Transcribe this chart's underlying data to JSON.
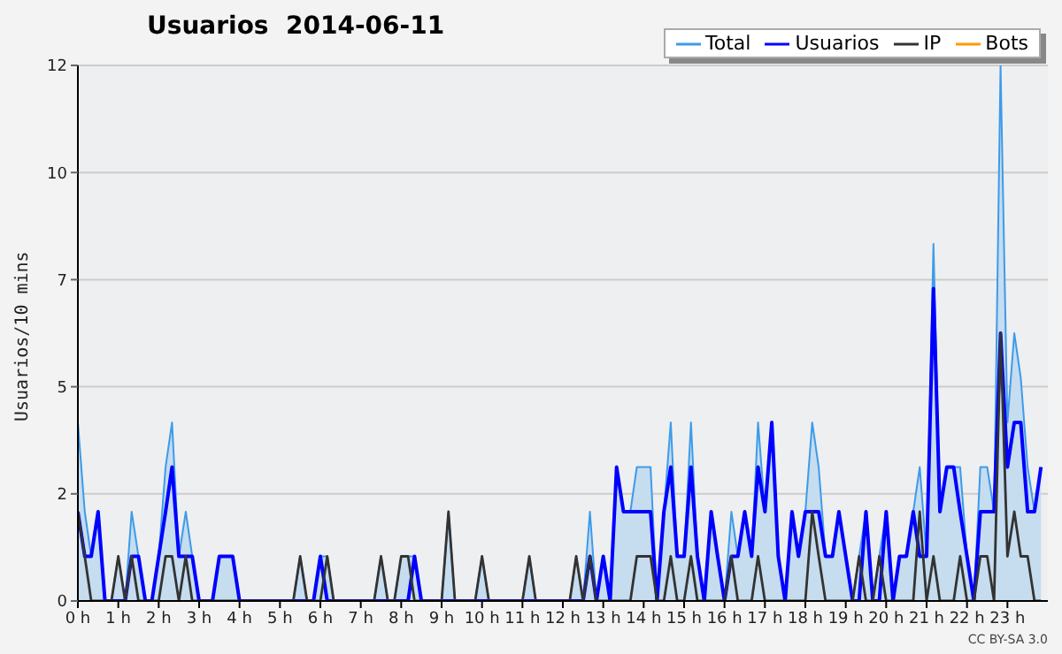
{
  "chart_data": {
    "type": "line",
    "title": "Usuarios  2014-06-11",
    "ylabel": "Usuarios/10 mins",
    "annotations": [
      "CC BY-SA 3.0"
    ],
    "xlim": [
      0,
      24
    ],
    "ylim": [
      0,
      12
    ],
    "xticks": [
      {
        "value": 0,
        "label": "0 h"
      },
      {
        "value": 1,
        "label": "1 h"
      },
      {
        "value": 2,
        "label": "2 h"
      },
      {
        "value": 3,
        "label": "3 h"
      },
      {
        "value": 4,
        "label": "4 h"
      },
      {
        "value": 5,
        "label": "5 h"
      },
      {
        "value": 6,
        "label": "6 h"
      },
      {
        "value": 7,
        "label": "7 h"
      },
      {
        "value": 8,
        "label": "8 h"
      },
      {
        "value": 9,
        "label": "9 h"
      },
      {
        "value": 10,
        "label": "10 h"
      },
      {
        "value": 11,
        "label": "11 h"
      },
      {
        "value": 12,
        "label": "12 h"
      },
      {
        "value": 13,
        "label": "13 h"
      },
      {
        "value": 14,
        "label": "14 h"
      },
      {
        "value": 15,
        "label": "15 h"
      },
      {
        "value": 16,
        "label": "16 h"
      },
      {
        "value": 17,
        "label": "17 h"
      },
      {
        "value": 18,
        "label": "18 h"
      },
      {
        "value": 19,
        "label": "19 h"
      },
      {
        "value": 20,
        "label": "20 h"
      },
      {
        "value": 21,
        "label": "21 h"
      },
      {
        "value": 22,
        "label": "22 h"
      },
      {
        "value": 23,
        "label": "23 h"
      }
    ],
    "yticks": [
      0,
      {
        "value": 2.4,
        "label": "2"
      },
      {
        "value": 4.8,
        "label": "5"
      },
      {
        "value": 7.2,
        "label": "7"
      },
      {
        "value": 9.6,
        "label": "10"
      },
      12
    ],
    "grid": "y",
    "legend": "top right",
    "marker": "none",
    "line_style": "solid",
    "x": [
      0,
      0.17,
      0.33,
      0.5,
      0.67,
      0.83,
      1,
      1.17,
      1.33,
      1.5,
      1.67,
      1.83,
      2,
      2.17,
      2.33,
      2.5,
      2.67,
      2.83,
      3,
      3.17,
      3.33,
      3.5,
      3.67,
      3.83,
      4,
      4.17,
      4.33,
      4.5,
      4.67,
      4.83,
      5,
      5.17,
      5.33,
      5.5,
      5.67,
      5.83,
      6,
      6.17,
      6.33,
      6.5,
      6.67,
      6.83,
      7,
      7.17,
      7.33,
      7.5,
      7.67,
      7.83,
      8,
      8.17,
      8.33,
      8.5,
      8.67,
      8.83,
      9,
      9.17,
      9.33,
      9.5,
      9.67,
      9.83,
      10,
      10.17,
      10.33,
      10.5,
      10.67,
      10.83,
      11,
      11.17,
      11.33,
      11.5,
      11.67,
      11.83,
      12,
      12.17,
      12.33,
      12.5,
      12.67,
      12.83,
      13,
      13.17,
      13.33,
      13.5,
      13.67,
      13.83,
      14,
      14.17,
      14.33,
      14.5,
      14.67,
      14.83,
      15,
      15.17,
      15.33,
      15.5,
      15.67,
      15.83,
      16,
      16.17,
      16.33,
      16.5,
      16.67,
      16.83,
      17,
      17.17,
      17.33,
      17.5,
      17.67,
      17.83,
      18,
      18.17,
      18.33,
      18.5,
      18.67,
      18.83,
      19,
      19.17,
      19.33,
      19.5,
      19.67,
      19.83,
      20,
      20.17,
      20.33,
      20.5,
      20.67,
      20.83,
      21,
      21.17,
      21.33,
      21.5,
      21.67,
      21.83,
      22,
      22.17,
      22.33,
      22.5,
      22.67,
      22.83,
      23,
      23.17,
      23.33,
      23.5,
      23.67,
      23.83
    ],
    "series": [
      {
        "name": "Total",
        "type": "area",
        "color": "#3d9be9",
        "values": [
          4,
          2,
          1,
          2,
          0,
          0,
          1,
          0,
          2,
          1,
          0,
          0,
          1,
          3,
          4,
          1,
          2,
          1,
          0,
          0,
          0,
          1,
          1,
          1,
          0,
          0,
          0,
          0,
          0,
          0,
          0,
          0,
          0,
          1,
          0,
          0,
          1,
          1,
          0,
          0,
          0,
          0,
          0,
          0,
          0,
          1,
          0,
          0,
          1,
          1,
          1,
          0,
          0,
          0,
          0,
          2,
          0,
          0,
          0,
          0,
          1,
          0,
          0,
          0,
          0,
          0,
          0,
          1,
          0,
          0,
          0,
          0,
          0,
          0,
          1,
          0,
          2,
          0,
          1,
          0,
          3,
          2,
          2,
          3,
          3,
          3,
          0,
          2,
          4,
          1,
          1,
          4,
          1,
          0,
          2,
          1,
          0,
          2,
          1,
          2,
          1,
          4,
          2,
          4,
          1,
          0,
          2,
          1,
          2,
          4,
          3,
          1,
          1,
          2,
          1,
          0,
          1,
          2,
          0,
          1,
          2,
          0,
          1,
          1,
          2,
          3,
          1,
          8,
          2,
          3,
          3,
          3,
          1,
          0,
          3,
          3,
          2,
          12,
          4,
          6,
          5,
          3,
          2,
          3
        ]
      },
      {
        "name": "Usuarios",
        "color": "#0000ff",
        "values": [
          2,
          1,
          1,
          2,
          0,
          0,
          0,
          0,
          1,
          1,
          0,
          0,
          1,
          2,
          3,
          1,
          1,
          1,
          0,
          0,
          0,
          1,
          1,
          1,
          0,
          0,
          0,
          0,
          0,
          0,
          0,
          0,
          0,
          0,
          0,
          0,
          1,
          0,
          0,
          0,
          0,
          0,
          0,
          0,
          0,
          0,
          0,
          0,
          0,
          0,
          1,
          0,
          0,
          0,
          0,
          0,
          0,
          0,
          0,
          0,
          0,
          0,
          0,
          0,
          0,
          0,
          0,
          0,
          0,
          0,
          0,
          0,
          0,
          0,
          0,
          0,
          1,
          0,
          1,
          0,
          3,
          2,
          2,
          2,
          2,
          2,
          0,
          2,
          3,
          1,
          1,
          3,
          1,
          0,
          2,
          1,
          0,
          1,
          1,
          2,
          1,
          3,
          2,
          4,
          1,
          0,
          2,
          1,
          2,
          2,
          2,
          1,
          1,
          2,
          1,
          0,
          0,
          2,
          0,
          0,
          2,
          0,
          1,
          1,
          2,
          1,
          1,
          7,
          2,
          3,
          3,
          2,
          1,
          0,
          2,
          2,
          2,
          6,
          3,
          4,
          4,
          2,
          2,
          3
        ]
      },
      {
        "name": "IP",
        "color": "#333333",
        "values": [
          2,
          1,
          0,
          0,
          0,
          0,
          1,
          0,
          1,
          0,
          0,
          0,
          0,
          1,
          1,
          0,
          1,
          0,
          0,
          0,
          0,
          0,
          0,
          0,
          0,
          0,
          0,
          0,
          0,
          0,
          0,
          0,
          0,
          1,
          0,
          0,
          0,
          1,
          0,
          0,
          0,
          0,
          0,
          0,
          0,
          1,
          0,
          0,
          1,
          1,
          0,
          0,
          0,
          0,
          0,
          2,
          0,
          0,
          0,
          0,
          1,
          0,
          0,
          0,
          0,
          0,
          0,
          1,
          0,
          0,
          0,
          0,
          0,
          0,
          1,
          0,
          1,
          0,
          0,
          0,
          0,
          0,
          0,
          1,
          1,
          1,
          0,
          0,
          1,
          0,
          0,
          1,
          0,
          0,
          0,
          0,
          0,
          1,
          0,
          0,
          0,
          1,
          0,
          0,
          0,
          0,
          0,
          0,
          0,
          2,
          1,
          0,
          0,
          0,
          0,
          0,
          1,
          0,
          0,
          1,
          0,
          0,
          0,
          0,
          0,
          2,
          0,
          1,
          0,
          0,
          0,
          1,
          0,
          0,
          1,
          1,
          0,
          6,
          1,
          2,
          1,
          1,
          0,
          0
        ]
      },
      {
        "name": "Bots",
        "color": "#ff9900",
        "values": [
          null,
          null,
          null,
          null,
          null,
          null,
          null,
          null,
          null,
          null,
          null,
          null,
          null,
          null,
          null,
          null,
          null,
          null,
          null,
          null,
          null,
          null,
          null,
          null,
          null,
          null,
          null,
          null,
          null,
          null,
          null,
          null,
          null,
          null,
          null,
          null,
          null,
          null,
          null,
          null,
          null,
          null,
          null,
          null,
          null,
          null,
          null,
          null,
          null,
          null,
          null,
          null,
          null,
          null,
          null,
          null,
          null,
          null,
          null,
          null,
          null,
          null,
          null,
          null,
          null,
          null,
          null,
          null,
          null,
          null,
          null,
          null,
          null,
          null,
          null,
          null,
          null,
          null,
          null,
          null,
          null,
          null,
          null,
          null,
          null,
          null,
          null,
          null,
          null,
          null,
          null,
          null,
          null,
          null,
          null,
          null,
          null,
          null,
          null,
          null,
          null,
          null,
          null,
          null,
          null,
          null,
          null,
          null,
          null,
          null,
          null,
          null,
          null,
          null,
          null,
          null,
          null,
          null,
          null,
          null,
          null,
          null,
          null,
          null,
          null,
          null,
          null,
          null,
          null,
          null,
          null,
          null,
          null,
          null,
          null,
          null,
          null,
          null,
          null,
          null,
          null,
          null,
          null,
          null
        ]
      }
    ]
  }
}
